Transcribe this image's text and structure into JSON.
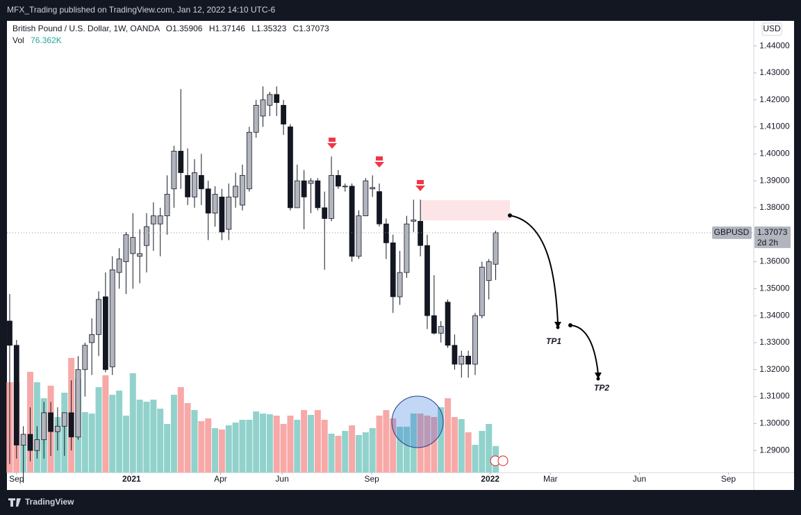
{
  "chart_data": {
    "type": "candlestick",
    "header": "MFX_Trading published on TradingView.com, Jan 12, 2022 14:10 UTC-6",
    "title": "British Pound / U.S. Dollar, 1W, OANDA",
    "ohlc_labels": [
      "O1.35906",
      "H1.37146",
      "L1.35323",
      "C1.37073"
    ],
    "volume_title": "Vol",
    "volume_value_label": "76.362K",
    "currency": "USD",
    "symbol": "GBPUSD",
    "last_price_label": "1.37073",
    "countdown": "2d 2h",
    "annotations": [
      "TP1",
      "TP2"
    ],
    "footer": "TradingView",
    "up_color": "#b2b5be",
    "down_color": "#131722",
    "volume_up_color": "#92d2cc",
    "volume_down_color": "#f7a9a7",
    "zone_color": "#fde4e6",
    "categories": [
      null,
      null,
      null,
      null,
      null,
      null,
      null,
      null,
      null,
      null,
      null,
      null,
      null,
      null,
      null,
      null,
      null,
      null,
      null,
      null,
      null,
      null,
      null,
      null,
      null,
      null,
      null,
      null,
      null,
      null,
      null,
      null,
      null,
      null,
      null,
      null,
      null,
      null,
      null,
      null,
      null,
      null,
      null,
      null,
      null,
      null,
      null,
      null,
      null,
      null,
      null,
      null,
      null,
      null,
      null,
      null,
      null,
      null,
      null,
      null,
      null,
      null,
      null,
      null,
      null,
      null,
      null,
      null,
      null,
      null,
      null,
      null
    ],
    "open": [
      1.338,
      1.329,
      1.292,
      1.296,
      1.29,
      1.294,
      1.304,
      1.297,
      1.299,
      1.304,
      1.295,
      1.32,
      1.33,
      1.333,
      1.347,
      1.321,
      1.356,
      1.36,
      1.363,
      1.362,
      1.366,
      1.374,
      1.374,
      1.377,
      1.387,
      1.401,
      1.392,
      1.384,
      1.392,
      1.387,
      1.378,
      1.384,
      1.372,
      1.384,
      1.381,
      1.387,
      1.408,
      1.414,
      1.418,
      1.422,
      1.418,
      1.41,
      1.38,
      1.39,
      1.389,
      1.39,
      1.38,
      1.376,
      1.392,
      1.388,
      1.388,
      1.362,
      1.377,
      1.387,
      1.386,
      1.374,
      1.367,
      1.347,
      1.356,
      1.375,
      1.375,
      1.366,
      1.34,
      1.3335,
      1.345,
      1.329,
      1.322,
      1.325,
      1.322,
      1.34,
      1.353,
      1.35906
    ],
    "high": [
      1.348,
      1.331,
      1.299,
      1.306,
      1.299,
      1.308,
      1.308,
      1.306,
      1.304,
      1.316,
      1.325,
      1.33,
      1.339,
      1.349,
      1.356,
      1.362,
      1.365,
      1.371,
      1.378,
      1.372,
      1.378,
      1.382,
      1.38,
      1.392,
      1.403,
      1.424,
      1.402,
      1.398,
      1.4,
      1.39,
      1.388,
      1.387,
      1.389,
      1.393,
      1.396,
      1.41,
      1.42,
      1.425,
      1.423,
      1.425,
      1.42,
      1.411,
      1.396,
      1.394,
      1.391,
      1.391,
      1.386,
      1.399,
      1.394,
      1.389,
      1.389,
      1.379,
      1.391,
      1.392,
      1.389,
      1.376,
      1.37,
      1.364,
      1.377,
      1.383,
      1.383,
      1.37,
      1.355,
      1.338,
      1.346,
      1.333,
      1.327,
      1.327,
      1.341,
      1.36,
      1.361,
      1.37146
    ],
    "low": [
      1.285,
      1.287,
      1.278,
      1.286,
      1.287,
      1.287,
      1.288,
      1.29,
      1.288,
      1.29,
      1.294,
      1.31,
      1.318,
      1.325,
      1.319,
      1.318,
      1.35,
      1.348,
      1.35,
      1.352,
      1.356,
      1.364,
      1.362,
      1.37,
      1.38,
      1.387,
      1.381,
      1.38,
      1.381,
      1.368,
      1.373,
      1.368,
      1.368,
      1.38,
      1.379,
      1.386,
      1.406,
      1.41,
      1.414,
      1.414,
      1.407,
      1.379,
      1.38,
      1.372,
      1.378,
      1.379,
      1.357,
      1.375,
      1.387,
      1.386,
      1.36,
      1.361,
      1.377,
      1.384,
      1.373,
      1.361,
      1.341,
      1.344,
      1.354,
      1.371,
      1.362,
      1.335,
      1.333,
      1.33,
      1.328,
      1.32,
      1.317,
      1.317,
      1.318,
      1.339,
      1.346,
      1.35323
    ],
    "close": [
      1.329,
      1.292,
      1.296,
      1.29,
      1.294,
      1.304,
      1.297,
      1.299,
      1.304,
      1.295,
      1.32,
      1.329,
      1.333,
      1.346,
      1.32,
      1.357,
      1.361,
      1.37,
      1.369,
      1.363,
      1.373,
      1.377,
      1.377,
      1.385,
      1.401,
      1.393,
      1.384,
      1.393,
      1.387,
      1.378,
      1.385,
      1.371,
      1.384,
      1.388,
      1.392,
      1.408,
      1.418,
      1.42,
      1.422,
      1.419,
      1.411,
      1.38,
      1.39,
      1.384,
      1.39,
      1.38,
      1.376,
      1.392,
      1.388,
      1.388,
      1.362,
      1.377,
      1.39,
      1.3875,
      1.374,
      1.367,
      1.347,
      1.356,
      1.374,
      1.3755,
      1.366,
      1.34,
      1.3335,
      1.336,
      1.329,
      1.322,
      1.325,
      1.322,
      1.34,
      1.358,
      1.36,
      1.37073
    ],
    "volume": [
      260,
      260,
      80,
      290,
      260,
      214,
      250,
      160,
      230,
      330,
      270,
      174,
      170,
      246,
      280,
      224,
      236,
      164,
      286,
      210,
      204,
      210,
      184,
      140,
      224,
      246,
      200,
      180,
      148,
      156,
      128,
      124,
      136,
      144,
      152,
      152,
      176,
      170,
      168,
      164,
      140,
      164,
      152,
      180,
      166,
      180,
      152,
      112,
      106,
      120,
      136,
      108,
      116,
      128,
      164,
      180,
      156,
      132,
      132,
      170,
      170,
      164,
      160,
      188,
      214,
      160,
      154,
      116,
      80,
      120,
      140,
      76.362
    ],
    "xlim": [
      -0.4,
      108.7
    ],
    "xticks": [
      {
        "value": 1,
        "label": "Sep"
      },
      {
        "value": 17.8,
        "label": "2021"
      },
      {
        "value": 30.8,
        "label": "Apr"
      },
      {
        "value": 39.8,
        "label": "Jun"
      },
      {
        "value": 52.9,
        "label": "Sep"
      },
      {
        "value": 70.2,
        "label": "2022"
      },
      {
        "value": 79,
        "label": "Mar"
      },
      {
        "value": 92,
        "label": "Jun"
      },
      {
        "value": 105,
        "label": "Sep"
      }
    ],
    "ylim": [
      1.2818,
      1.4493
    ],
    "yticks": [
      {
        "value": 1.29,
        "label": "1.29000"
      },
      {
        "value": 1.3,
        "label": "1.30000"
      },
      {
        "value": 1.31,
        "label": "1.31000"
      },
      {
        "value": 1.32,
        "label": "1.32000"
      },
      {
        "value": 1.33,
        "label": "1.33000"
      },
      {
        "value": 1.34,
        "label": "1.34000"
      },
      {
        "value": 1.35,
        "label": "1.35000"
      },
      {
        "value": 1.36,
        "label": "1.36000"
      },
      {
        "value": 1.37,
        "label": "1.37000"
      },
      {
        "value": 1.38,
        "label": "1.38000"
      },
      {
        "value": 1.39,
        "label": "1.39000"
      },
      {
        "value": 1.4,
        "label": "1.40000"
      },
      {
        "value": 1.41,
        "label": "1.41000"
      },
      {
        "value": 1.42,
        "label": "1.42000"
      },
      {
        "value": 1.43,
        "label": "1.43000"
      },
      {
        "value": 1.44,
        "label": "1.44000"
      }
    ],
    "last_price": 1.37073,
    "zone": [
      1.3753,
      1.3828
    ],
    "grid": false
  }
}
